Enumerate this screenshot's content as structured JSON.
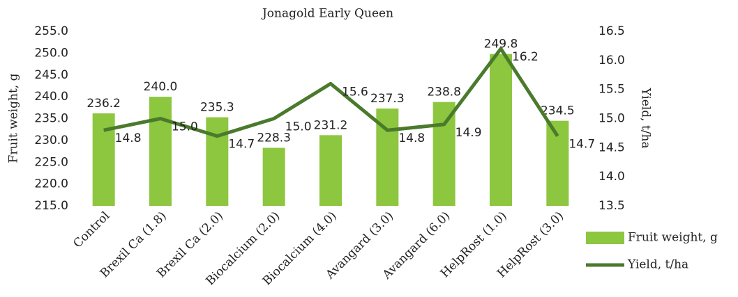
{
  "chart_data": {
    "type": "bar-line",
    "title": "Jonagold Early Queen",
    "categories": [
      "Control",
      "Brexil Ca (1.8)",
      "Brexil Ca (2.0)",
      "Biocalcium (2.0)",
      "Biocalcium (4.0)",
      "Avangard (3.0)",
      "Avangard (6.0)",
      "HelpRost (1.0)",
      "HelpRost (3.0)"
    ],
    "y_label": "Fruit weight, g",
    "y2_label": "Yield, t/ha",
    "series": [
      {
        "name": "Fruit weight, g",
        "type": "bar",
        "color": "#8dc63f",
        "axis": "y",
        "values": [
          236.2,
          240.0,
          235.3,
          228.3,
          231.2,
          237.3,
          238.8,
          249.8,
          234.5
        ],
        "value_labels": [
          "236.2",
          "240.0",
          "235.3",
          "228.3",
          "231.2",
          "237.3",
          "238.8",
          "249.8",
          "234.5"
        ]
      },
      {
        "name": "Yield, t/ha",
        "type": "line",
        "color": "#4a7a2c",
        "axis": "y2",
        "values": [
          14.8,
          15.0,
          14.7,
          15.0,
          15.6,
          14.8,
          14.9,
          16.2,
          14.7
        ],
        "value_labels": [
          "14.8",
          "15.0",
          "14.7",
          "15.0",
          "15.6",
          "14.8",
          "14.9",
          "16.2",
          "14.7"
        ]
      }
    ],
    "ylim": [
      215,
      255
    ],
    "yticks": [
      {
        "value": 215,
        "label": "215.0"
      },
      {
        "value": 220,
        "label": "220.0"
      },
      {
        "value": 225,
        "label": "225.0"
      },
      {
        "value": 230,
        "label": "230.0"
      },
      {
        "value": 235,
        "label": "235.0"
      },
      {
        "value": 240,
        "label": "240.0"
      },
      {
        "value": 245,
        "label": "245.0"
      },
      {
        "value": 250,
        "label": "250.0"
      },
      {
        "value": 255,
        "label": "255.0"
      }
    ],
    "y2lim": [
      13.5,
      16.5
    ],
    "y2ticks": [
      13.5,
      {
        "value": 14,
        "label": "14.0"
      },
      14.5,
      {
        "value": 15,
        "label": "15.0"
      },
      15.5,
      {
        "value": 16,
        "label": "16.0"
      },
      16.5
    ],
    "legend": "right"
  }
}
